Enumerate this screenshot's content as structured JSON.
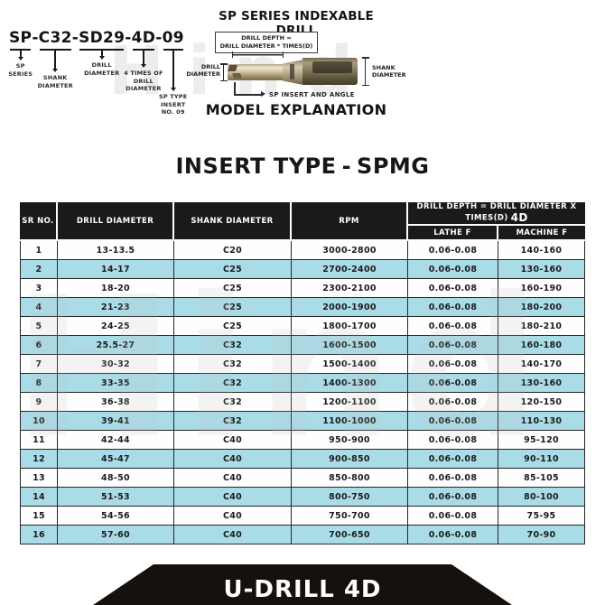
{
  "colors": {
    "accent_row": "#aadce8",
    "header_bg": "#1b1a1a",
    "banner_bg": "#16110c"
  },
  "watermark": {
    "text": "Hind"
  },
  "model_header": {
    "dash": "-",
    "code_parts": [
      {
        "text": "SP",
        "label": "SP\nSERIES"
      },
      {
        "text": "C32",
        "label": "SHANK\nDIAMETER"
      },
      {
        "text": "SD29",
        "label": "DRILL\nDIAMETER"
      },
      {
        "text": "4D",
        "label": "4 TIMES OF\nDRILL\nDIAMETER"
      },
      {
        "text": "09",
        "label": "SP TYPE\nINSERT\nNO. 09"
      }
    ],
    "series_title": "SP SERIES INDEXABLE DRILL",
    "depth_note": "DRILL DEPTH =\nDRILL DIAMETER * TIMES(D)",
    "drill_diameter_label": "DRILL\nDIAMETER",
    "shank_diameter_label": "SHANK\nDIAMETER",
    "insert_note": "SP INSERT AND ANGLE",
    "model_explanation": "MODEL EXPLANATION"
  },
  "section": {
    "title_main": "INSERT TYPE",
    "title_sep": "-",
    "title_code": "SPMG"
  },
  "table": {
    "headers": {
      "sr": "SR NO.",
      "drill": "DRILL DIAMETER",
      "shank": "SHANK DIAMETER",
      "rpm": "RPM",
      "depth_group": "DRILL DEPTH = DRILL DIAMETER X TIMES(D)",
      "depth_suffix": "4D",
      "lathe": "LATHE F",
      "machine": "MACHINE F"
    },
    "rows": [
      {
        "sr": "1",
        "drill": "13-13.5",
        "shank": "C20",
        "rpm": "3000-2800",
        "lathe": "0.06-0.08",
        "machine": "140-160"
      },
      {
        "sr": "2",
        "drill": "14-17",
        "shank": "C25",
        "rpm": "2700-2400",
        "lathe": "0.06-0.08",
        "machine": "130-160"
      },
      {
        "sr": "3",
        "drill": "18-20",
        "shank": "C25",
        "rpm": "2300-2100",
        "lathe": "0.06-0.08",
        "machine": "160-190"
      },
      {
        "sr": "4",
        "drill": "21-23",
        "shank": "C25",
        "rpm": "2000-1900",
        "lathe": "0.06-0.08",
        "machine": "180-200"
      },
      {
        "sr": "5",
        "drill": "24-25",
        "shank": "C25",
        "rpm": "1800-1700",
        "lathe": "0.06-0.08",
        "machine": "180-210"
      },
      {
        "sr": "6",
        "drill": "25.5-27",
        "shank": "C32",
        "rpm": "1600-1500",
        "lathe": "0.06-0.08",
        "machine": "160-180"
      },
      {
        "sr": "7",
        "drill": "30-32",
        "shank": "C32",
        "rpm": "1500-1400",
        "lathe": "0.06-0.08",
        "machine": "140-170"
      },
      {
        "sr": "8",
        "drill": "33-35",
        "shank": "C32",
        "rpm": "1400-1300",
        "lathe": "0.06-0.08",
        "machine": "130-160"
      },
      {
        "sr": "9",
        "drill": "36-38",
        "shank": "C32",
        "rpm": "1200-1100",
        "lathe": "0.06-0.08",
        "machine": "120-150"
      },
      {
        "sr": "10",
        "drill": "39-41",
        "shank": "C32",
        "rpm": "1100-1000",
        "lathe": "0.06-0.08",
        "machine": "110-130"
      },
      {
        "sr": "11",
        "drill": "42-44",
        "shank": "C40",
        "rpm": "950-900",
        "lathe": "0.06-0.08",
        "machine": "95-120"
      },
      {
        "sr": "12",
        "drill": "45-47",
        "shank": "C40",
        "rpm": "900-850",
        "lathe": "0.06-0.08",
        "machine": "90-110"
      },
      {
        "sr": "13",
        "drill": "48-50",
        "shank": "C40",
        "rpm": "850-800",
        "lathe": "0.06-0.08",
        "machine": "85-105"
      },
      {
        "sr": "14",
        "drill": "51-53",
        "shank": "C40",
        "rpm": "800-750",
        "lathe": "0.06-0.08",
        "machine": "80-100"
      },
      {
        "sr": "15",
        "drill": "54-56",
        "shank": "C40",
        "rpm": "750-700",
        "lathe": "0.06-0.08",
        "machine": "75-95"
      },
      {
        "sr": "16",
        "drill": "57-60",
        "shank": "C40",
        "rpm": "700-650",
        "lathe": "0.06-0.08",
        "machine": "70-90"
      }
    ]
  },
  "footer": {
    "banner_title": "U-DRILL 4D"
  }
}
